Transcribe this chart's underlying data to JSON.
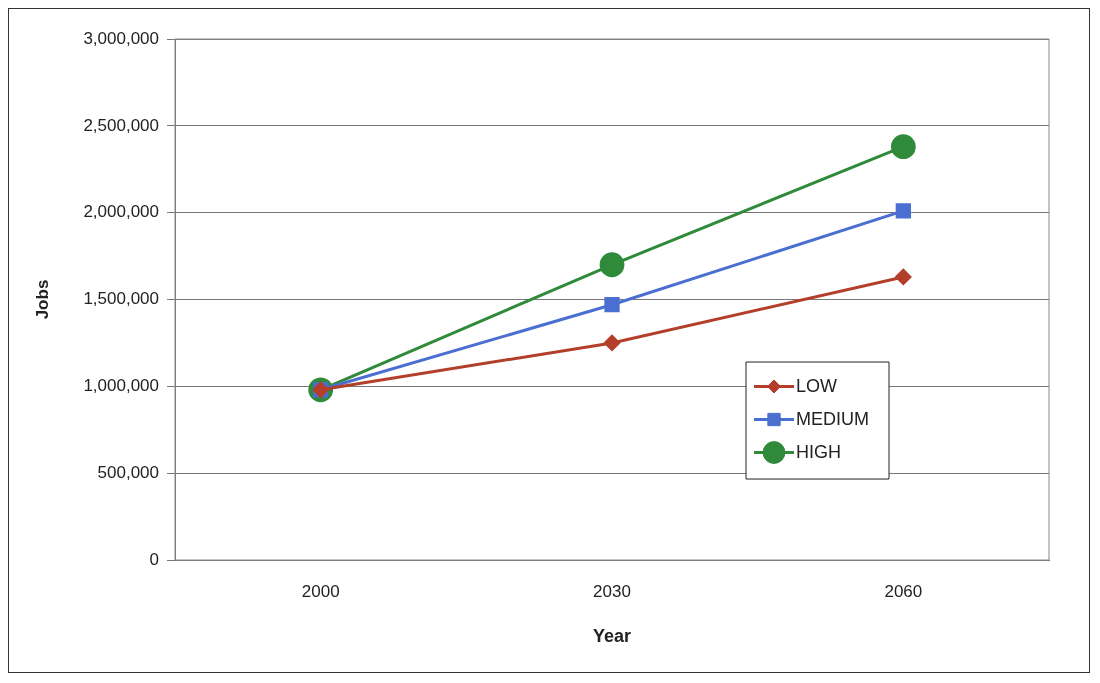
{
  "chart_data": {
    "type": "line",
    "xlabel": "Year",
    "ylabel": "Jobs",
    "categories": [
      "2000",
      "2030",
      "2060"
    ],
    "ylim": [
      0,
      3000000
    ],
    "yticks": [
      {
        "value": 0,
        "label": "0"
      },
      {
        "value": 500000,
        "label": "500,000"
      },
      {
        "value": 1000000,
        "label": "1,000,000"
      },
      {
        "value": 1500000,
        "label": "1,500,000"
      },
      {
        "value": 2000000,
        "label": "2,000,000"
      },
      {
        "value": 2500000,
        "label": "2,500,000"
      },
      {
        "value": 3000000,
        "label": "3,000,000"
      }
    ],
    "grid": "y",
    "legend": "right",
    "line_style": "solid",
    "series": [
      {
        "name": "LOW",
        "color": "#b33f2a",
        "marker": "diamond",
        "values": [
          980000,
          1250000,
          1630000
        ]
      },
      {
        "name": "MEDIUM",
        "color": "#4a6fd0",
        "marker": "square",
        "values": [
          980000,
          1470000,
          2010000
        ]
      },
      {
        "name": "HIGH",
        "color": "#2f8a3a",
        "marker": "circle",
        "values": [
          980000,
          1700000,
          2380000
        ]
      }
    ]
  }
}
